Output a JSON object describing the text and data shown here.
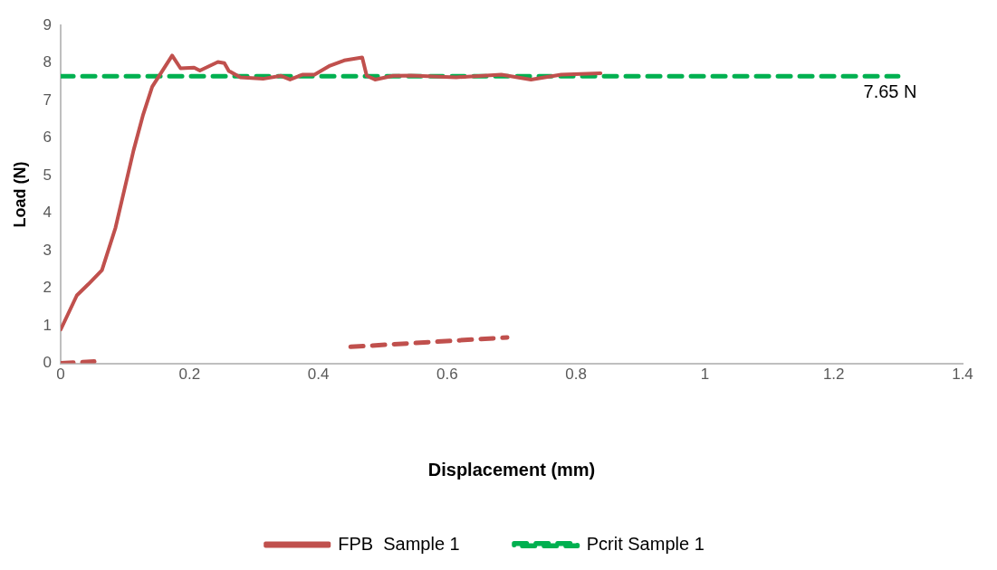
{
  "chart_data": {
    "type": "line",
    "xlabel": "Displacement (mm)",
    "ylabel": "Load (N)",
    "xlim": [
      0,
      1.4
    ],
    "xticks": [
      0,
      0.2,
      0.4,
      0.6,
      0.8,
      1,
      1.2,
      1.4
    ],
    "ylim": [
      0,
      9
    ],
    "yticks": [
      0,
      1,
      2,
      3,
      4,
      5,
      6,
      7,
      8,
      9
    ],
    "grid": false,
    "legend": "bottom",
    "marker": "none",
    "series": [
      {
        "name": "FPB  Sample 1",
        "color": "#c0504d",
        "line_style": "solid",
        "x": [
          0,
          0.025,
          0.043,
          0.064,
          0.085,
          0.099,
          0.113,
          0.128,
          0.142,
          0.173,
          0.186,
          0.207,
          0.216,
          0.244,
          0.254,
          0.261,
          0.279,
          0.314,
          0.342,
          0.356,
          0.375,
          0.394,
          0.418,
          0.44,
          0.468,
          0.475,
          0.488,
          0.516,
          0.544,
          0.614,
          0.684,
          0.73,
          0.777,
          0.838
        ],
        "values": [
          0.9,
          1.81,
          2.11,
          2.48,
          3.61,
          4.64,
          5.67,
          6.63,
          7.37,
          8.2,
          7.86,
          7.88,
          7.8,
          8.03,
          8.0,
          7.79,
          7.62,
          7.58,
          7.66,
          7.56,
          7.69,
          7.69,
          7.93,
          8.07,
          8.15,
          7.66,
          7.56,
          7.66,
          7.67,
          7.62,
          7.69,
          7.56,
          7.69,
          7.73
        ]
      },
      {
        "name": "Pcrit Sample 1",
        "color": "#00b050",
        "line_style": "dashed",
        "x": [
          0,
          1.3
        ],
        "values": [
          7.65,
          7.65
        ]
      },
      {
        "color": "#c0504d",
        "line_style": "dashed",
        "x": [
          0,
          0.052,
          0.3,
          0.45,
          0.693
        ],
        "values": [
          0,
          0.05,
          null,
          0.44,
          0.69
        ]
      }
    ],
    "annotations": [
      "7.65 N"
    ]
  }
}
